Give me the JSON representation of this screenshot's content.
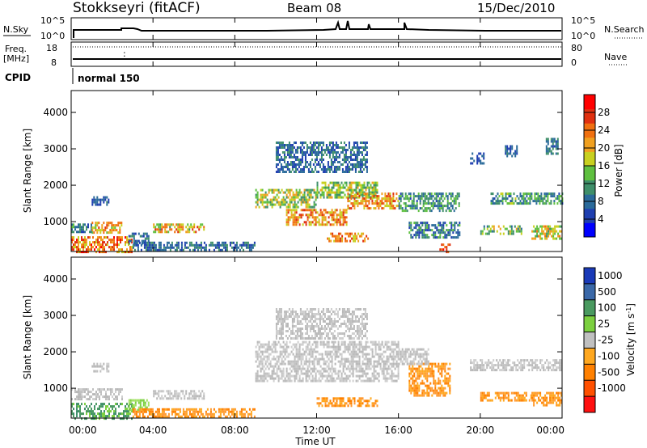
{
  "header": {
    "title": "Stokkseyri (fitACF)",
    "beam": "Beam 08",
    "date": "15/Dec/2010"
  },
  "summary_panels": {
    "nsky": {
      "label": "N.Sky",
      "right_label": "N.Search",
      "left_ticks": [
        "10^5",
        "10^0"
      ],
      "right_ticks": [
        "10^5",
        "10^0"
      ]
    },
    "freq": {
      "label_line1": "Freq.",
      "label_line2": "[MHz]",
      "right_label": "Nave",
      "left_ticks": [
        "18",
        "8"
      ],
      "right_ticks": [
        "80",
        "0"
      ]
    },
    "cpid": {
      "label": "CPID",
      "value": "normal 150"
    }
  },
  "colors": {
    "power": [
      "#0000ff",
      "#1f3fb0",
      "#2a6a9a",
      "#3f8f6a",
      "#5fc040",
      "#c8d020",
      "#f0a020",
      "#f07010",
      "#e03010",
      "#ff0000"
    ],
    "velocity": [
      "#1a3ab8",
      "#3a68a8",
      "#4a9a60",
      "#7cd040",
      "#c0c0c0",
      "#ffa820",
      "#ff8000",
      "#ff5000",
      "#ff1010"
    ],
    "ground_scatter": "#b8b8b8"
  },
  "chart_data": [
    {
      "type": "heatmap",
      "name": "power",
      "ylabel": "Slant Range [km]",
      "xlabel": "Time UT",
      "x_ticks": [
        "00:00",
        "04:00",
        "08:00",
        "12:00",
        "16:00",
        "20:00",
        "00:00"
      ],
      "x_range_hours": [
        0,
        24
      ],
      "y_ticks": [
        "1000",
        "2000",
        "3000",
        "4000"
      ],
      "y_range_km": [
        180,
        4600
      ],
      "colorbar": {
        "label": "Power [dB]",
        "ticks": [
          "4",
          "8",
          "12",
          "16",
          "20",
          "24",
          "28"
        ],
        "range": [
          0,
          32
        ]
      },
      "regions": [
        {
          "t": [
            0.0,
            3.0
          ],
          "r": [
            200,
            600
          ],
          "v": [
            16,
            30
          ]
        },
        {
          "t": [
            0.0,
            1.0
          ],
          "r": [
            700,
            950
          ],
          "v": [
            6,
            14
          ]
        },
        {
          "t": [
            1.0,
            2.5
          ],
          "r": [
            700,
            1000
          ],
          "v": [
            14,
            26
          ]
        },
        {
          "t": [
            1.0,
            1.8
          ],
          "r": [
            1500,
            1700
          ],
          "v": [
            4,
            10
          ]
        },
        {
          "t": [
            2.8,
            3.8
          ],
          "r": [
            400,
            700
          ],
          "v": [
            4,
            12
          ]
        },
        {
          "t": [
            3.0,
            9.0
          ],
          "r": [
            200,
            450
          ],
          "v": [
            4,
            12
          ]
        },
        {
          "t": [
            4.0,
            6.5
          ],
          "r": [
            700,
            950
          ],
          "v": [
            12,
            28
          ]
        },
        {
          "t": [
            9.0,
            12.0
          ],
          "r": [
            1400,
            1900
          ],
          "v": [
            10,
            22
          ]
        },
        {
          "t": [
            10.5,
            13.5
          ],
          "r": [
            950,
            1350
          ],
          "v": [
            16,
            28
          ]
        },
        {
          "t": [
            12.0,
            15.0
          ],
          "r": [
            1700,
            2100
          ],
          "v": [
            10,
            20
          ]
        },
        {
          "t": [
            12.5,
            14.5
          ],
          "r": [
            500,
            700
          ],
          "v": [
            18,
            28
          ]
        },
        {
          "t": [
            13.5,
            16.0
          ],
          "r": [
            1400,
            1800
          ],
          "v": [
            16,
            28
          ]
        },
        {
          "t": [
            10.0,
            14.5
          ],
          "r": [
            2400,
            3200
          ],
          "v": [
            4,
            12
          ]
        },
        {
          "t": [
            16.0,
            19.0
          ],
          "r": [
            1300,
            1800
          ],
          "v": [
            6,
            16
          ]
        },
        {
          "t": [
            16.5,
            19.0
          ],
          "r": [
            600,
            1000
          ],
          "v": [
            4,
            14
          ]
        },
        {
          "t": [
            18.0,
            18.5
          ],
          "r": [
            200,
            400
          ],
          "v": [
            24,
            30
          ]
        },
        {
          "t": [
            20.5,
            22.0
          ],
          "r": [
            1500,
            1800
          ],
          "v": [
            6,
            18
          ]
        },
        {
          "t": [
            22.0,
            24.0
          ],
          "r": [
            1500,
            1800
          ],
          "v": [
            6,
            16
          ]
        },
        {
          "t": [
            20.0,
            22.0
          ],
          "r": [
            650,
            900
          ],
          "v": [
            8,
            20
          ]
        },
        {
          "t": [
            22.5,
            24.0
          ],
          "r": [
            550,
            900
          ],
          "v": [
            12,
            24
          ]
        },
        {
          "t": [
            19.5,
            20.2
          ],
          "r": [
            2600,
            2900
          ],
          "v": [
            4,
            10
          ]
        },
        {
          "t": [
            21.2,
            21.8
          ],
          "r": [
            2800,
            3100
          ],
          "v": [
            4,
            10
          ]
        },
        {
          "t": [
            23.2,
            23.8
          ],
          "r": [
            2900,
            3300
          ],
          "v": [
            6,
            12
          ]
        }
      ]
    },
    {
      "type": "heatmap",
      "name": "velocity",
      "ylabel": "Slant Range [km]",
      "xlabel": "Time UT",
      "x_ticks": [
        "00:00",
        "04:00",
        "08:00",
        "12:00",
        "16:00",
        "20:00",
        "00:00"
      ],
      "x_range_hours": [
        0,
        24
      ],
      "y_ticks": [
        "1000",
        "2000",
        "3000",
        "4000"
      ],
      "y_range_km": [
        180,
        4600
      ],
      "colorbar": {
        "label": "Velocity [m s^-1]",
        "ticks": [
          "1000",
          "500",
          "100",
          "25",
          "-25",
          "-100",
          "-500",
          "-1000"
        ]
      },
      "regions": [
        {
          "t": [
            0.0,
            3.0
          ],
          "r": [
            200,
            600
          ],
          "cat": "green"
        },
        {
          "t": [
            0.0,
            2.5
          ],
          "r": [
            700,
            1000
          ],
          "cat": "gray"
        },
        {
          "t": [
            1.0,
            1.8
          ],
          "r": [
            1500,
            1700
          ],
          "cat": "gray"
        },
        {
          "t": [
            2.8,
            3.8
          ],
          "r": [
            400,
            700
          ],
          "cat": "lightgreen"
        },
        {
          "t": [
            3.0,
            9.0
          ],
          "r": [
            200,
            450
          ],
          "cat": "orange"
        },
        {
          "t": [
            4.0,
            6.5
          ],
          "r": [
            700,
            950
          ],
          "cat": "gray"
        },
        {
          "t": [
            9.0,
            16.0
          ],
          "r": [
            1200,
            2300
          ],
          "cat": "gray"
        },
        {
          "t": [
            10.0,
            14.5
          ],
          "r": [
            2400,
            3200
          ],
          "cat": "gray"
        },
        {
          "t": [
            12.0,
            15.0
          ],
          "r": [
            500,
            750
          ],
          "cat": "orange"
        },
        {
          "t": [
            16.5,
            18.5
          ],
          "r": [
            800,
            1700
          ],
          "cat": "orange"
        },
        {
          "t": [
            16.0,
            17.5
          ],
          "r": [
            1700,
            2100
          ],
          "cat": "gray"
        },
        {
          "t": [
            19.5,
            24.0
          ],
          "r": [
            1500,
            1800
          ],
          "cat": "gray"
        },
        {
          "t": [
            20.0,
            22.5
          ],
          "r": [
            650,
            900
          ],
          "cat": "orange"
        },
        {
          "t": [
            22.5,
            24.0
          ],
          "r": [
            550,
            900
          ],
          "cat": "orange"
        }
      ]
    }
  ],
  "axis": {
    "time_label": "Time UT"
  }
}
